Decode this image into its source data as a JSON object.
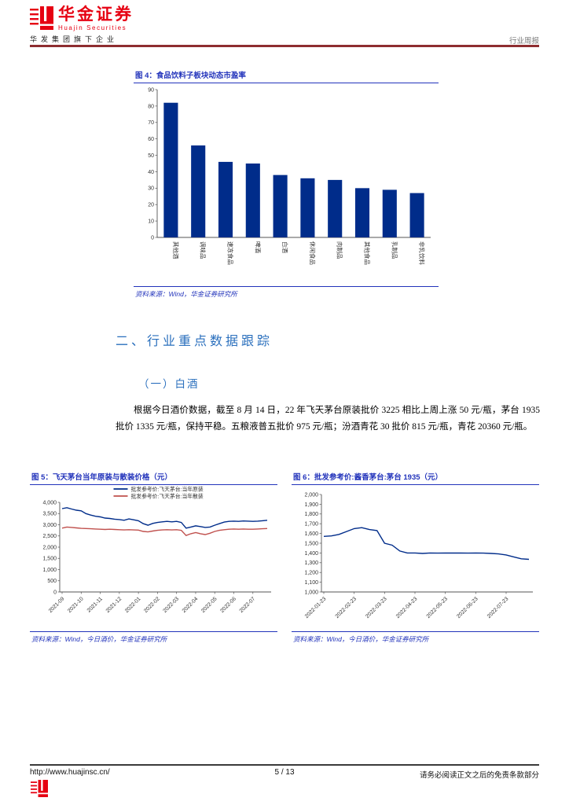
{
  "colors": {
    "brand_red": "#E60012",
    "header_rule": "#8E2D30",
    "caption_blue": "#2233BB",
    "heading_blue": "#2A6FBD",
    "chart_navy": "#002C8A",
    "chart_red": "#C0504D"
  },
  "header": {
    "brand_cn": "华金证券",
    "brand_en": "Huajin Securities",
    "tagline": "华发集团旗下企业",
    "report_type": "行业周报"
  },
  "figure4": {
    "caption": "图 4：食品饮料子板块动态市盈率",
    "source": "资料来源：Wind，华金证券研究所"
  },
  "section": {
    "heading": "二、行业重点数据跟踪",
    "subheading": "（一）白酒",
    "paragraph": "根据今日酒价数据，截至 8 月 14 日，22 年飞天茅台原装批价 3225 相比上周上涨 50 元/瓶，茅台 1935 批价 1335 元/瓶，保持平稳。五粮液普五批价 975 元/瓶；汾酒青花 30 批价 815 元/瓶，青花 20360 元/瓶。"
  },
  "figure5": {
    "caption": "图 5：飞天茅台当年原装与散装价格（元）",
    "source": "资料来源：Wind，今日酒价，华金证券研究所"
  },
  "figure6": {
    "caption": "图 6：批发参考价:酱香茅台:茅台 1935（元）",
    "source": "资料来源：Wind，今日酒价，华金证券研究所"
  },
  "footer": {
    "url": "http://www.huajinsc.cn/",
    "page": "5 / 13",
    "disclaimer": "请务必阅读正文之后的免责条款部分"
  },
  "chart_data": [
    {
      "type": "bar",
      "title": "食品饮料子板块动态市盈率",
      "categories": [
        "其他酒",
        "调味品",
        "速冻食品",
        "啤酒",
        "白酒",
        "休闲食品",
        "肉制品",
        "其他食品",
        "乳制品",
        "非乳饮料"
      ],
      "values": [
        82,
        56,
        46,
        45,
        38,
        36,
        35,
        30,
        29,
        27
      ],
      "ylim": [
        0,
        90
      ],
      "ystep": 10,
      "color": "#002C8A",
      "grid": false,
      "xlabel": "",
      "ylabel": ""
    },
    {
      "type": "line",
      "title": "飞天茅台当年原装与散装价格（元）",
      "ylim": [
        0,
        4000
      ],
      "ystep": 500,
      "legend": "top",
      "xtick_labels": [
        "2021-09",
        "2021-10",
        "2021-11",
        "2021-12",
        "2022-01",
        "2022-02",
        "2022-03",
        "2022-04",
        "2022-05",
        "2022-06",
        "2022-07"
      ],
      "xtick_indices": [
        0,
        4,
        8,
        12,
        16,
        20,
        24,
        28,
        32,
        36,
        40
      ],
      "series": [
        {
          "name": "批发参考价:飞天茅台:当年原装",
          "color": "#002C8A",
          "values": [
            3720,
            3760,
            3700,
            3650,
            3620,
            3500,
            3430,
            3380,
            3350,
            3300,
            3280,
            3250,
            3230,
            3200,
            3260,
            3220,
            3180,
            3050,
            2980,
            3060,
            3100,
            3130,
            3150,
            3130,
            3150,
            3100,
            2850,
            2900,
            2950,
            2920,
            2880,
            2900,
            2980,
            3050,
            3120,
            3150,
            3160,
            3150,
            3170,
            3160,
            3150,
            3160,
            3180,
            3200
          ]
        },
        {
          "name": "批发参考价:飞天茅台:当年散装",
          "color": "#C0504D",
          "values": [
            2850,
            2900,
            2880,
            2860,
            2840,
            2830,
            2820,
            2810,
            2800,
            2790,
            2800,
            2790,
            2780,
            2770,
            2780,
            2770,
            2760,
            2700,
            2680,
            2720,
            2750,
            2770,
            2780,
            2770,
            2780,
            2750,
            2520,
            2600,
            2650,
            2600,
            2560,
            2620,
            2700,
            2750,
            2780,
            2800,
            2810,
            2800,
            2810,
            2800,
            2800,
            2810,
            2820,
            2830
          ]
        }
      ]
    },
    {
      "type": "line",
      "title": "批发参考价:酱香茅台:茅台 1935（元）",
      "ylim": [
        1000,
        2000
      ],
      "ystep": 100,
      "xtick_labels": [
        "2022-01-23",
        "2022-02-23",
        "2022-03-23",
        "2022-04-23",
        "2022-05-23",
        "2022-06-23",
        "2022-07-23"
      ],
      "xtick_indices": [
        0,
        4,
        8,
        12,
        16,
        20,
        24
      ],
      "series": [
        {
          "name": "批发参考价:酱香茅台:茅台1935",
          "color": "#002C8A",
          "values": [
            1570,
            1575,
            1590,
            1620,
            1650,
            1660,
            1640,
            1630,
            1500,
            1480,
            1420,
            1400,
            1400,
            1395,
            1400,
            1398,
            1400,
            1399,
            1400,
            1398,
            1400,
            1398,
            1395,
            1390,
            1380,
            1360,
            1340,
            1335
          ]
        }
      ]
    }
  ]
}
